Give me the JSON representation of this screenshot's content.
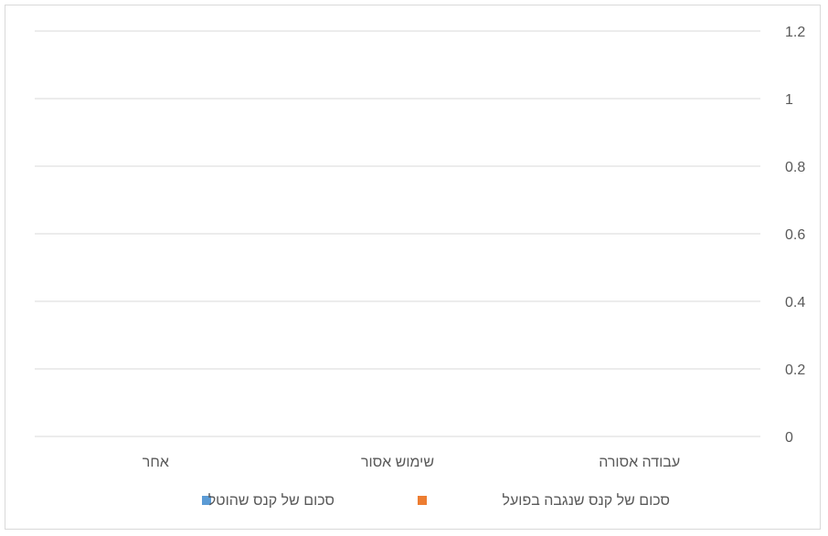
{
  "chart_data": {
    "type": "bar",
    "title": "",
    "xlabel": "",
    "ylabel": "",
    "categories": [
      "עבודה אסורה",
      "שימוש אסור",
      "אחר"
    ],
    "series": [
      {
        "name": "סכום של קנס שהוטל",
        "values": [
          0,
          0,
          0
        ],
        "color": "#5b9bd5"
      },
      {
        "name": "סכום של קנס שנגבה בפועל",
        "values": [
          0,
          0,
          0
        ],
        "color": "#ed7d31"
      }
    ],
    "ylim": [
      0,
      1.2
    ],
    "yticks": [
      0,
      0.2,
      0.4,
      0.6,
      0.8,
      1,
      1.2
    ],
    "y_axis_side": "right",
    "category_order": "right-to-left",
    "grid": true,
    "legend_position": "bottom"
  }
}
